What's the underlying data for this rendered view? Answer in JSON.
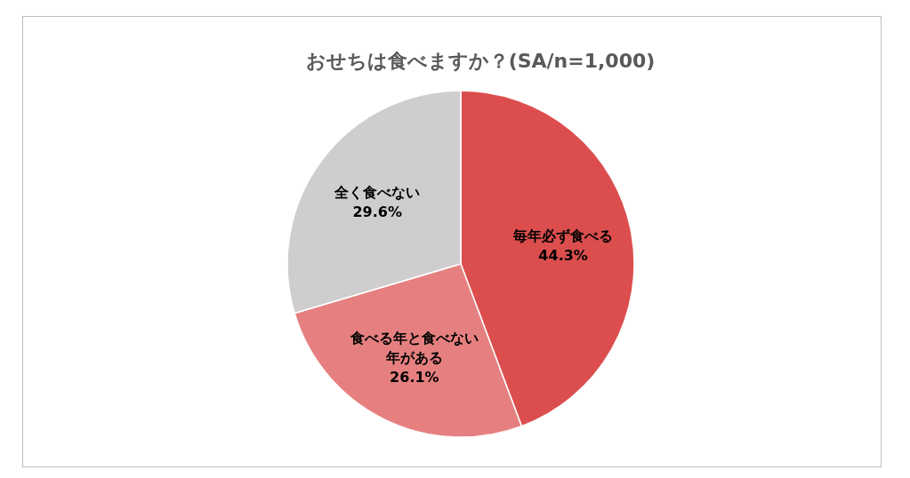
{
  "chart_data": {
    "type": "pie",
    "title": "おせちは食べますか？(SA/n=1,000)",
    "categories": [
      "毎年必ず食べる",
      "食べる年と食べない年がある",
      "全く食べない"
    ],
    "values": [
      44.3,
      26.1,
      29.6
    ],
    "colors": [
      "#dc4e4e",
      "#e68080",
      "#d0cdcf"
    ],
    "value_labels": [
      "44.3%",
      "26.1%",
      "29.6%"
    ]
  }
}
